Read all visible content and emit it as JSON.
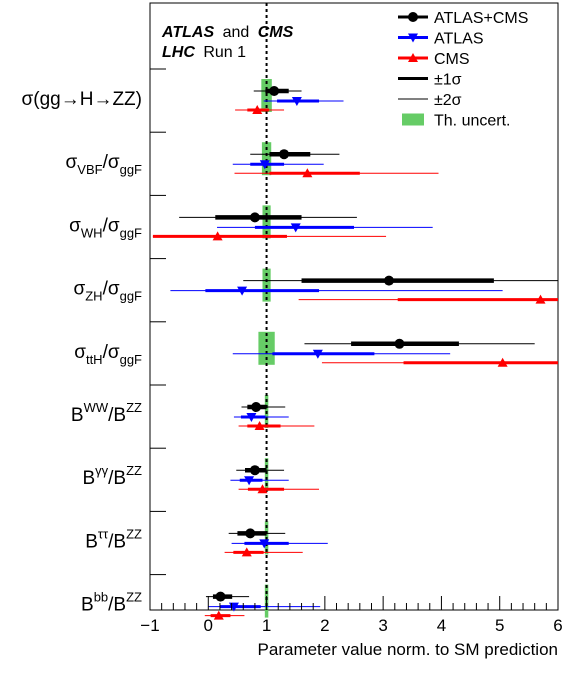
{
  "chart_data": {
    "type": "scatter",
    "header": {
      "experiment_a": "ATLAS",
      "and": "and",
      "experiment_b": "CMS",
      "machine": "LHC",
      "run": "Run 1"
    },
    "xlabel": "Parameter value norm. to SM prediction",
    "xlim": [
      -1,
      6
    ],
    "x_tick_labels": [
      "−1",
      "0",
      "1",
      "2",
      "3",
      "4",
      "5",
      "6"
    ],
    "x_tick_values": [
      -1,
      0,
      1,
      2,
      3,
      4,
      5,
      6
    ],
    "sm_reference_line": 1,
    "legend": {
      "position": "top-right",
      "entries": [
        {
          "label": "ATLAS+CMS",
          "marker": "circle",
          "color": "#000000"
        },
        {
          "label": "ATLAS",
          "marker": "triangle-down",
          "color": "#0000ff"
        },
        {
          "label": "CMS",
          "marker": "triangle-up",
          "color": "#ff0000"
        },
        {
          "label": "±1σ",
          "marker": "thick-line",
          "color": "#000000"
        },
        {
          "label": "±2σ",
          "marker": "thin-line",
          "color": "#000000"
        },
        {
          "label": "Th. uncert.",
          "marker": "box",
          "color": "#66cc66"
        }
      ]
    },
    "parameters": [
      {
        "base": "σ(gg→H→ZZ)",
        "sup1": "",
        "mid": "",
        "sub2": "",
        "sup2": "",
        "th": [
          0.91,
          1.09
        ],
        "combined": {
          "v": 1.13,
          "s1": [
            0.98,
            1.38
          ],
          "s2": [
            0.78,
            1.6
          ]
        },
        "atlas": {
          "v": 1.52,
          "s1": [
            1.18,
            1.9
          ],
          "s2": [
            0.95,
            2.32
          ]
        },
        "cms": {
          "v": 0.84,
          "s1": [
            0.67,
            1.04
          ],
          "s2": [
            0.46,
            1.3
          ]
        }
      },
      {
        "base": "σ",
        "sub1": "VBF",
        "sup1": "",
        "mid": "/σ",
        "sub2": "ggF",
        "sup2": "",
        "th": [
          0.92,
          1.08
        ],
        "combined": {
          "v": 1.3,
          "s1": [
            1.05,
            1.75
          ],
          "s2": [
            0.72,
            2.25
          ]
        },
        "atlas": {
          "v": 0.97,
          "s1": [
            0.72,
            1.3
          ],
          "s2": [
            0.42,
            1.98
          ]
        },
        "cms": {
          "v": 1.7,
          "s1": [
            1.05,
            2.6
          ],
          "s2": [
            0.45,
            3.95
          ]
        }
      },
      {
        "base": "σ",
        "sub1": "WH",
        "sup1": "",
        "mid": "/σ",
        "sub2": "ggF",
        "sup2": "",
        "th": [
          0.93,
          1.07
        ],
        "combined": {
          "v": 0.8,
          "s1": [
            0.12,
            1.6
          ],
          "s2": [
            -0.5,
            2.55
          ]
        },
        "atlas": {
          "v": 1.5,
          "s1": [
            0.8,
            2.5
          ],
          "s2": [
            0.15,
            3.85
          ]
        },
        "cms": {
          "v": 0.16,
          "s1": [
            -0.95,
            1.35
          ],
          "s2": [
            -0.95,
            3.05
          ]
        }
      },
      {
        "base": "σ",
        "sub1": "ZH",
        "sup1": "",
        "mid": "/σ",
        "sub2": "ggF",
        "sup2": "",
        "th": [
          0.93,
          1.07
        ],
        "combined": {
          "v": 3.1,
          "s1": [
            1.6,
            4.9
          ],
          "s2": [
            0.6,
            6.0
          ]
        },
        "atlas": {
          "v": 0.58,
          "s1": [
            -0.05,
            1.9
          ],
          "s2": [
            -0.65,
            5.05
          ]
        },
        "cms": {
          "v": 5.7,
          "s1": [
            3.25,
            6.0
          ],
          "s2": [
            1.55,
            6.0
          ]
        }
      },
      {
        "base": "σ",
        "sub1": "ttH",
        "sup1": "",
        "mid": "/σ",
        "sub2": "ggF",
        "sup2": "",
        "th": [
          0.86,
          1.14
        ],
        "combined": {
          "v": 3.28,
          "s1": [
            2.45,
            4.3
          ],
          "s2": [
            1.65,
            5.6
          ]
        },
        "atlas": {
          "v": 1.88,
          "s1": [
            1.1,
            2.85
          ],
          "s2": [
            0.42,
            4.15
          ]
        },
        "cms": {
          "v": 5.05,
          "s1": [
            3.35,
            6.0
          ],
          "s2": [
            1.95,
            6.0
          ]
        }
      },
      {
        "base": "B",
        "sub1": "",
        "sup1": "WW",
        "mid": "/B",
        "sub2": "",
        "sup2": "ZZ",
        "th": [
          0.97,
          1.03
        ],
        "combined": {
          "v": 0.82,
          "s1": [
            0.67,
            1.0
          ],
          "s2": [
            0.57,
            1.32
          ]
        },
        "atlas": {
          "v": 0.74,
          "s1": [
            0.56,
            0.98
          ],
          "s2": [
            0.44,
            1.38
          ]
        },
        "cms": {
          "v": 0.88,
          "s1": [
            0.67,
            1.24
          ],
          "s2": [
            0.52,
            1.82
          ]
        }
      },
      {
        "base": "B",
        "sub1": "",
        "sup1": "γγ",
        "mid": "/B",
        "sub2": "",
        "sup2": "ZZ",
        "th": [
          0.97,
          1.03
        ],
        "combined": {
          "v": 0.8,
          "s1": [
            0.63,
            1.0
          ],
          "s2": [
            0.48,
            1.3
          ]
        },
        "atlas": {
          "v": 0.7,
          "s1": [
            0.54,
            0.93
          ],
          "s2": [
            0.38,
            1.38
          ]
        },
        "cms": {
          "v": 0.93,
          "s1": [
            0.68,
            1.3
          ],
          "s2": [
            0.52,
            1.9
          ]
        }
      },
      {
        "base": "B",
        "sub1": "",
        "sup1": "ττ",
        "mid": "/B",
        "sub2": "",
        "sup2": "ZZ",
        "th": [
          0.97,
          1.03
        ],
        "combined": {
          "v": 0.72,
          "s1": [
            0.5,
            1.0
          ],
          "s2": [
            0.35,
            1.32
          ]
        },
        "atlas": {
          "v": 0.96,
          "s1": [
            0.62,
            1.38
          ],
          "s2": [
            0.4,
            2.05
          ]
        },
        "cms": {
          "v": 0.66,
          "s1": [
            0.43,
            0.95
          ],
          "s2": [
            0.28,
            1.62
          ]
        }
      },
      {
        "base": "B",
        "sub1": "",
        "sup1": "bb",
        "mid": "/B",
        "sub2": "",
        "sup2": "ZZ",
        "th": [
          0.97,
          1.03
        ],
        "combined": {
          "v": 0.21,
          "s1": [
            0.08,
            0.41
          ],
          "s2": [
            -0.04,
            0.7
          ]
        },
        "atlas": {
          "v": 0.44,
          "s1": [
            0.2,
            0.9
          ],
          "s2": [
            0.0,
            1.92
          ]
        },
        "cms": {
          "v": 0.18,
          "s1": [
            0.04,
            0.38
          ],
          "s2": [
            -0.06,
            0.62
          ]
        }
      }
    ]
  },
  "colors": {
    "combined": "#000000",
    "atlas": "#0000ff",
    "cms": "#ff0000",
    "theory": "#66cc66"
  }
}
